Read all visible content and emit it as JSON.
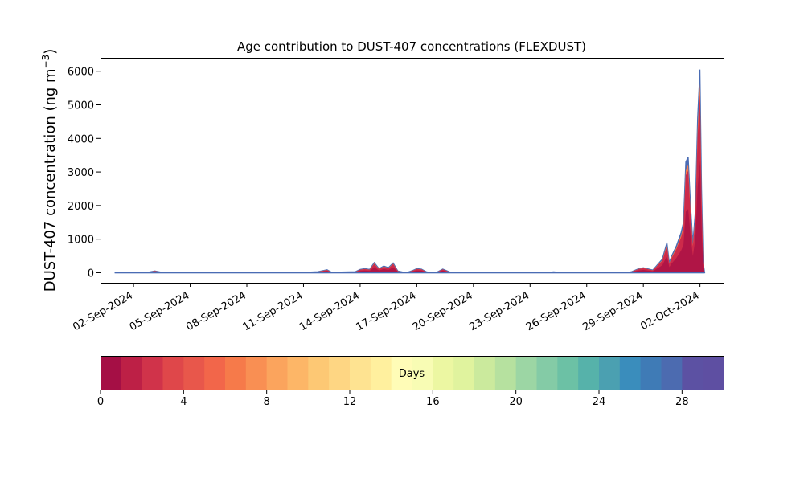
{
  "chart_data": {
    "type": "area",
    "title": "Age contribution to DUST-407 concentrations (FLEXDUST)",
    "ylabel": "DUST-407 concentration (ng m",
    "ylabel_sup": "−3",
    "ylabel_close": ")",
    "xlabel": "",
    "ylim": [
      -300,
      6400
    ],
    "y_ticks": [
      0,
      1000,
      2000,
      3000,
      4000,
      5000,
      6000
    ],
    "x_tick_labels": [
      "02-Sep-2024",
      "05-Sep-2024",
      "08-Sep-2024",
      "11-Sep-2024",
      "14-Sep-2024",
      "17-Sep-2024",
      "20-Sep-2024",
      "23-Sep-2024",
      "26-Sep-2024",
      "29-Sep-2024",
      "02-Oct-2024"
    ],
    "x_ticks": [
      "2024-09-02",
      "2024-09-05",
      "2024-09-08",
      "2024-09-11",
      "2024-09-14",
      "2024-09-17",
      "2024-09-20",
      "2024-09-23",
      "2024-09-26",
      "2024-09-29",
      "2024-10-02"
    ],
    "xlim": [
      "2024-08-31T06:00",
      "2024-10-03T06:00"
    ],
    "total_series": [
      [
        "2024-09-01T00:00",
        0
      ],
      [
        "2024-09-01T18:00",
        0
      ],
      [
        "2024-09-02T00:00",
        15
      ],
      [
        "2024-09-02T18:00",
        10
      ],
      [
        "2024-09-03T03:00",
        55
      ],
      [
        "2024-09-03T12:00",
        10
      ],
      [
        "2024-09-04T00:00",
        20
      ],
      [
        "2024-09-04T18:00",
        0
      ],
      [
        "2024-09-05T12:00",
        0
      ],
      [
        "2024-09-06T06:00",
        5
      ],
      [
        "2024-09-06T12:00",
        15
      ],
      [
        "2024-09-07T00:00",
        10
      ],
      [
        "2024-09-08T00:00",
        5
      ],
      [
        "2024-09-09T00:00",
        0
      ],
      [
        "2024-09-10T00:00",
        10
      ],
      [
        "2024-09-10T12:00",
        0
      ],
      [
        "2024-09-11T00:00",
        10
      ],
      [
        "2024-09-11T18:00",
        30
      ],
      [
        "2024-09-12T06:00",
        90
      ],
      [
        "2024-09-12T12:00",
        10
      ],
      [
        "2024-09-13T00:00",
        20
      ],
      [
        "2024-09-13T18:00",
        30
      ],
      [
        "2024-09-14T00:00",
        100
      ],
      [
        "2024-09-14T06:00",
        120
      ],
      [
        "2024-09-14T12:00",
        100
      ],
      [
        "2024-09-14T18:00",
        300
      ],
      [
        "2024-09-15T00:00",
        120
      ],
      [
        "2024-09-15T06:00",
        200
      ],
      [
        "2024-09-15T12:00",
        150
      ],
      [
        "2024-09-15T18:00",
        290
      ],
      [
        "2024-09-16T00:00",
        50
      ],
      [
        "2024-09-16T06:00",
        20
      ],
      [
        "2024-09-16T12:00",
        10
      ],
      [
        "2024-09-16T18:00",
        60
      ],
      [
        "2024-09-17T00:00",
        120
      ],
      [
        "2024-09-17T06:00",
        110
      ],
      [
        "2024-09-17T12:00",
        30
      ],
      [
        "2024-09-17T18:00",
        0
      ],
      [
        "2024-09-18T00:00",
        0
      ],
      [
        "2024-09-18T09:00",
        110
      ],
      [
        "2024-09-18T18:00",
        20
      ],
      [
        "2024-09-19T12:00",
        0
      ],
      [
        "2024-09-20T00:00",
        0
      ],
      [
        "2024-09-21T00:00",
        5
      ],
      [
        "2024-09-21T12:00",
        15
      ],
      [
        "2024-09-22T00:00",
        5
      ],
      [
        "2024-09-23T00:00",
        0
      ],
      [
        "2024-09-24T00:00",
        10
      ],
      [
        "2024-09-24T06:00",
        25
      ],
      [
        "2024-09-24T18:00",
        0
      ],
      [
        "2024-09-26T00:00",
        0
      ],
      [
        "2024-09-28T00:00",
        0
      ],
      [
        "2024-09-28T09:00",
        30
      ],
      [
        "2024-09-28T18:00",
        120
      ],
      [
        "2024-09-29T00:00",
        150
      ],
      [
        "2024-09-29T12:00",
        80
      ],
      [
        "2024-09-30T00:00",
        400
      ],
      [
        "2024-09-30T06:00",
        900
      ],
      [
        "2024-09-30T09:00",
        300
      ],
      [
        "2024-09-30T12:00",
        500
      ],
      [
        "2024-09-30T18:00",
        800
      ],
      [
        "2024-10-01T00:00",
        1200
      ],
      [
        "2024-10-01T03:00",
        1500
      ],
      [
        "2024-10-01T06:00",
        3300
      ],
      [
        "2024-10-01T09:00",
        3450
      ],
      [
        "2024-10-01T12:00",
        2000
      ],
      [
        "2024-10-01T15:00",
        900
      ],
      [
        "2024-10-01T18:00",
        1800
      ],
      [
        "2024-10-01T21:00",
        4600
      ],
      [
        "2024-10-02T00:00",
        6050
      ],
      [
        "2024-10-02T02:00",
        2500
      ],
      [
        "2024-10-02T04:00",
        300
      ],
      [
        "2024-10-02T06:00",
        0
      ]
    ],
    "colorbar": {
      "label": "Days",
      "range": [
        0,
        30
      ],
      "ticks": [
        0,
        4,
        8,
        12,
        16,
        20,
        24,
        28
      ],
      "colors": [
        "#a50f45",
        "#bd2046",
        "#d0334a",
        "#df474a",
        "#e8574b",
        "#f2664a",
        "#f67a4a",
        "#f98f53",
        "#fba45d",
        "#fdb667",
        "#fdc874",
        "#fed683",
        "#fee391",
        "#fff09e",
        "#fffcb7",
        "#f8fcb4",
        "#ecf7a2",
        "#e0f39e",
        "#cbea9d",
        "#b6e19f",
        "#9cd6a4",
        "#84cba6",
        "#6cc1a5",
        "#56b2aa",
        "#4ba0b1",
        "#3a8dbc",
        "#3f7bb6",
        "#4c6bb0",
        "#5c51a3",
        "#5e4fa2"
      ]
    },
    "series_colors": {
      "outer": "#4a6cb4",
      "inner": "#cd2a4a",
      "core": "#a50f45",
      "fringe": "#f67a4a"
    }
  }
}
